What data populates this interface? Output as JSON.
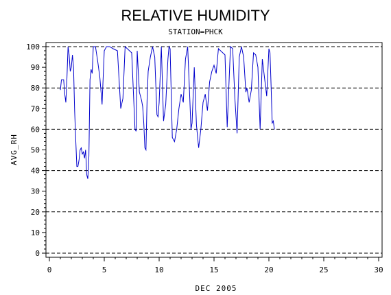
{
  "chart_data": {
    "type": "line",
    "title": "RELATIVE HUMIDITY",
    "subtitle": "STATION=PHCK",
    "xlabel": "DEC 2005",
    "ylabel": "AVG_RH",
    "xlim": [
      0,
      30
    ],
    "ylim": [
      0,
      100
    ],
    "x_ticks": [
      0,
      5,
      10,
      15,
      20,
      25,
      30
    ],
    "y_ticks": [
      0,
      10,
      20,
      30,
      40,
      50,
      60,
      70,
      80,
      90,
      100
    ],
    "reference_lines": [
      0,
      20,
      40,
      60,
      80,
      100
    ],
    "grid": "dashed horizontal reference lines",
    "line_color": "#0000cc",
    "x": [
      1.0,
      1.1,
      1.2,
      1.3,
      1.4,
      1.5,
      1.6,
      1.7,
      1.8,
      1.9,
      2.0,
      2.1,
      2.2,
      2.3,
      2.4,
      2.5,
      2.6,
      2.7,
      2.8,
      2.9,
      3.0,
      3.1,
      3.2,
      3.3,
      3.4,
      3.5,
      3.6,
      3.7,
      3.8,
      3.9,
      4.0,
      4.2,
      4.4,
      4.6,
      4.8,
      5.0,
      5.2,
      5.5,
      5.8,
      6.2,
      6.5,
      6.7,
      6.9,
      7.1,
      7.5,
      7.8,
      7.9,
      8.0,
      8.2,
      8.4,
      8.5,
      8.6,
      8.7,
      8.8,
      8.9,
      9.0,
      9.2,
      9.4,
      9.6,
      9.8,
      9.9,
      10.0,
      10.2,
      10.4,
      10.6,
      10.8,
      10.9,
      11.0,
      11.2,
      11.4,
      11.6,
      11.8,
      12.0,
      12.2,
      12.4,
      12.6,
      12.8,
      12.9,
      13.0,
      13.2,
      13.4,
      13.6,
      13.8,
      14.0,
      14.2,
      14.4,
      14.6,
      14.8,
      15.0,
      15.2,
      15.4,
      15.6,
      15.8,
      16.0,
      16.2,
      16.5,
      16.7,
      16.9,
      17.1,
      17.3,
      17.5,
      17.7,
      17.9,
      18.0,
      18.2,
      18.4,
      18.6,
      18.8,
      19.0,
      19.2,
      19.4,
      19.6,
      19.8,
      20.0,
      20.1,
      20.2,
      20.3,
      20.4,
      20.5
    ],
    "series": [
      {
        "values": [
          79,
          84,
          84,
          84,
          77,
          73,
          85,
          100,
          96,
          88,
          90,
          96,
          90,
          69,
          55,
          42,
          42,
          45,
          50,
          51,
          48,
          49,
          46,
          50,
          38,
          36,
          47,
          84,
          89,
          87,
          100,
          100,
          93,
          85,
          72,
          98,
          100,
          100,
          99,
          98,
          70,
          75,
          100,
          99,
          97,
          60,
          59,
          98,
          78,
          74,
          71,
          63,
          51,
          50,
          74,
          88,
          95,
          100,
          95,
          67,
          66,
          73,
          100,
          64,
          72,
          94,
          100,
          99,
          56,
          54,
          60,
          70,
          77,
          73,
          94,
          100,
          74,
          60,
          63,
          90,
          62,
          51,
          60,
          73,
          77,
          69,
          83,
          88,
          91,
          87,
          99,
          98,
          97,
          96,
          61,
          100,
          99,
          75,
          58,
          95,
          100,
          95,
          78,
          80,
          73,
          79,
          97,
          96,
          90,
          60,
          94,
          85,
          76,
          99,
          97,
          81,
          63,
          64,
          60
        ]
      }
    ]
  }
}
